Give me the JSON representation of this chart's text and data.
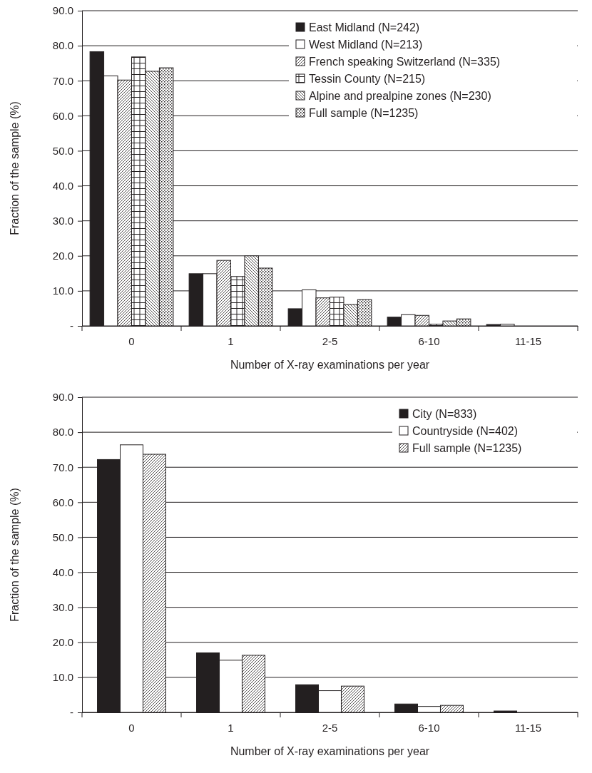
{
  "chart_data": [
    {
      "type": "bar",
      "xlabel": "Number of X-ray examinations per year",
      "ylabel": "Fraction of the sample (%)",
      "categories": [
        "0",
        "1",
        "2-5",
        "6-10",
        "11-15"
      ],
      "series": [
        {
          "name": "East Midland (N=242)",
          "color": "#231f20",
          "values": [
            78.3,
            14.9,
            4.9,
            2.5,
            0.4
          ]
        },
        {
          "name": "West Midland (N=213)",
          "color": "#ffffff",
          "values": [
            71.4,
            14.9,
            10.3,
            3.2,
            0.5
          ]
        },
        {
          "name": "French speaking Switzerland (N=335)",
          "color": "#231f20",
          "values": [
            70.2,
            18.7,
            8.0,
            3.0,
            0
          ]
        },
        {
          "name": "Tessin County (N=215)",
          "color": "#231f20",
          "values": [
            76.8,
            14.1,
            8.2,
            0.5,
            0
          ]
        },
        {
          "name": "Alpine and prealpine zones (N=230)",
          "color": "#231f20",
          "values": [
            72.7,
            20.0,
            6.1,
            1.4,
            0
          ]
        },
        {
          "name": "Full sample (N=1235)",
          "color": "#231f20",
          "values": [
            73.7,
            16.5,
            7.5,
            2.0,
            0
          ]
        }
      ],
      "ylim": [
        0,
        90
      ],
      "yticks": [
        {
          "value": 0,
          "label": "-"
        },
        {
          "value": 10,
          "label": "10.0"
        },
        {
          "value": 20,
          "label": "20.0"
        },
        {
          "value": 30,
          "label": "30.0"
        },
        {
          "value": 40,
          "label": "40.0"
        },
        {
          "value": 50,
          "label": "50.0"
        },
        {
          "value": 60,
          "label": "60.0"
        },
        {
          "value": 70,
          "label": "70.0"
        },
        {
          "value": 80,
          "label": "80.0"
        },
        {
          "value": 90,
          "label": "90.0"
        }
      ],
      "grid": "y",
      "legend": "top right"
    },
    {
      "type": "bar",
      "xlabel": "Number of X-ray examinations per year",
      "ylabel": "Fraction of the sample (%)",
      "categories": [
        "0",
        "1",
        "2-5",
        "6-10",
        "11-15"
      ],
      "series": [
        {
          "name": "City (N=833)",
          "color": "#231f20",
          "values": [
            72.2,
            17.0,
            7.9,
            2.4,
            0.4
          ]
        },
        {
          "name": "Countryside (N=402)",
          "color": "#ffffff",
          "values": [
            76.4,
            14.9,
            6.2,
            1.7,
            0
          ]
        },
        {
          "name": "Full sample (N=1235)",
          "color": "#231f20",
          "values": [
            73.7,
            16.3,
            7.5,
            2.0,
            0
          ]
        }
      ],
      "ylim": [
        0,
        90
      ],
      "yticks": [
        {
          "value": 0,
          "label": "-"
        },
        {
          "value": 10,
          "label": "10.0"
        },
        {
          "value": 20,
          "label": "20.0"
        },
        {
          "value": 30,
          "label": "30.0"
        },
        {
          "value": 40,
          "label": "40.0"
        },
        {
          "value": 50,
          "label": "50.0"
        },
        {
          "value": 60,
          "label": "60.0"
        },
        {
          "value": 70,
          "label": "70.0"
        },
        {
          "value": 80,
          "label": "80.0"
        },
        {
          "value": 90,
          "label": "90.0"
        }
      ],
      "grid": "y",
      "legend": "top right"
    }
  ]
}
